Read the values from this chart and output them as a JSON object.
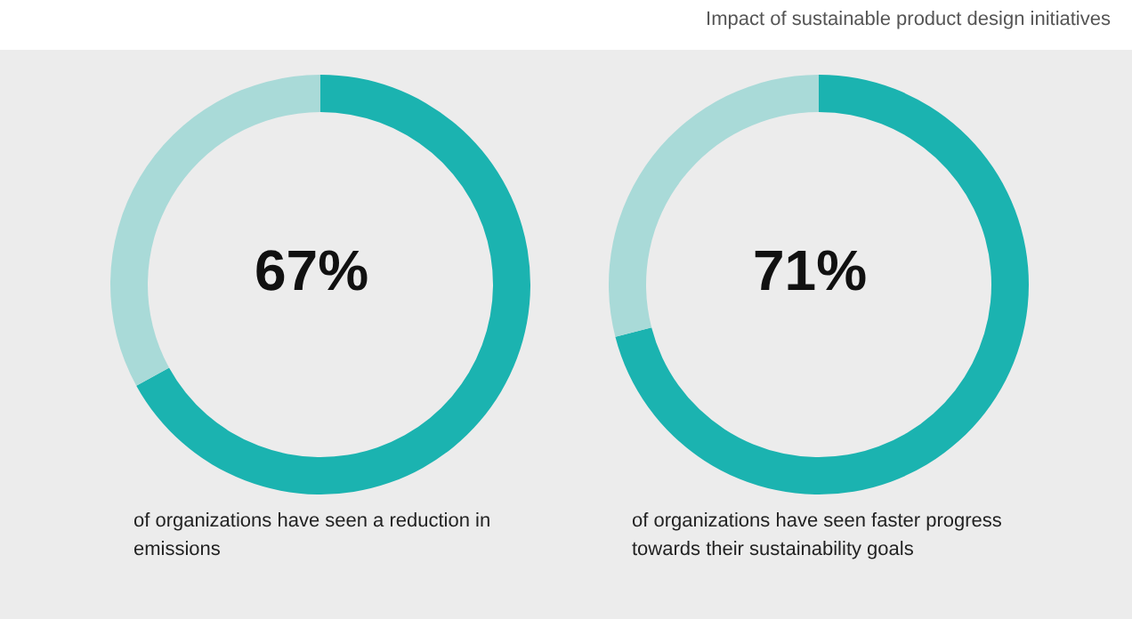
{
  "chart_data": [
    {
      "type": "donut",
      "categories": [
        null,
        null
      ],
      "values": [
        67,
        33
      ],
      "colors": [
        "#1bb3b0",
        "#a9dad8"
      ],
      "annotations": [
        "67%",
        "of organizations have seen a reduction in emissions"
      ]
    },
    {
      "type": "donut",
      "title": "Impact of sustainable product design initiatives",
      "categories": [
        null,
        null
      ],
      "values": [
        71,
        29
      ],
      "colors": [
        "#1bb3b0",
        "#a9dad8"
      ],
      "annotations": [
        "71%",
        "of organizations have seen faster progress towards their sustainability goals"
      ]
    }
  ]
}
